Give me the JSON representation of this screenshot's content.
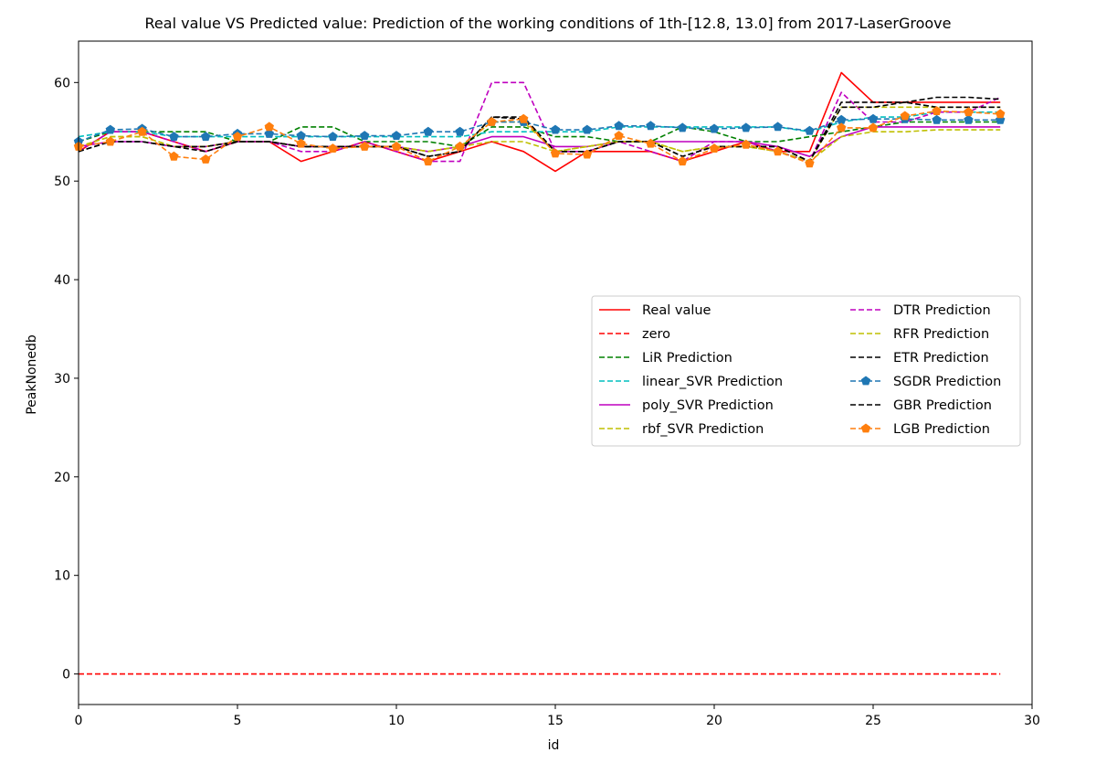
{
  "chart_data": {
    "type": "line",
    "title": "Real value VS Predicted value: Prediction of the working conditions of 1th-[12.8, 13.0] from 2017-LaserGroove",
    "xlabel": "id",
    "ylabel": "PeakNonedb",
    "xlim": [
      0,
      30
    ],
    "ylim": [
      -3.1,
      64.2
    ],
    "xticks": [
      0,
      5,
      10,
      15,
      20,
      25,
      30
    ],
    "yticks": [
      0,
      10,
      20,
      30,
      40,
      50,
      60
    ],
    "grid": false,
    "legend_position": "center-right",
    "x": [
      0,
      1,
      2,
      3,
      4,
      5,
      6,
      7,
      8,
      9,
      10,
      11,
      12,
      13,
      14,
      15,
      16,
      17,
      18,
      19,
      20,
      21,
      22,
      23,
      24,
      25,
      26,
      27,
      28,
      29
    ],
    "series": [
      {
        "name": "Real value",
        "color": "#ff0000",
        "style": "solid",
        "marker": "none",
        "values": [
          53,
          55,
          55,
          54,
          53,
          54,
          54,
          52,
          53,
          54,
          53,
          52,
          53,
          54,
          53,
          51,
          53,
          53,
          53,
          52,
          53,
          54,
          53,
          53,
          61,
          58,
          58,
          58,
          58,
          58
        ]
      },
      {
        "name": "zero",
        "color": "#ff0000",
        "style": "dashed",
        "marker": "none",
        "values": [
          0,
          0,
          0,
          0,
          0,
          0,
          0,
          0,
          0,
          0,
          0,
          0,
          0,
          0,
          0,
          0,
          0,
          0,
          0,
          0,
          0,
          0,
          0,
          0,
          0,
          0,
          0,
          0,
          0,
          0
        ]
      },
      {
        "name": "LiR Prediction",
        "color": "#008000",
        "style": "dashed",
        "marker": "none",
        "values": [
          54,
          55,
          55,
          55,
          55,
          54,
          54,
          55.5,
          55.5,
          54,
          54,
          54,
          53.5,
          55.5,
          55.5,
          54.5,
          54.5,
          54,
          54,
          55.5,
          55,
          54,
          54,
          54.5,
          55,
          55.5,
          56,
          56,
          56,
          56
        ]
      },
      {
        "name": "linear_SVR Prediction",
        "color": "#00bfbf",
        "style": "dashed",
        "marker": "none",
        "values": [
          54.5,
          55,
          55,
          54.5,
          54.5,
          54.5,
          54.5,
          54.5,
          54.5,
          54.5,
          54.5,
          54.5,
          54.5,
          55,
          55,
          55,
          55,
          55.5,
          55.5,
          55.5,
          55.5,
          55.5,
          55.5,
          55,
          56,
          56.5,
          56.5,
          57,
          57,
          57
        ]
      },
      {
        "name": "poly_SVR Prediction",
        "color": "#bf00bf",
        "style": "solid",
        "marker": "none",
        "values": [
          53.5,
          54,
          54,
          53.5,
          53.5,
          54,
          54,
          53.5,
          53.5,
          53.5,
          53.5,
          53,
          53.5,
          54.5,
          54.5,
          53.5,
          53.5,
          54,
          54,
          54,
          54,
          54,
          53.5,
          52.5,
          54.5,
          55.5,
          55.5,
          55.5,
          55.5,
          55.5
        ]
      },
      {
        "name": "rbf_SVR Prediction",
        "color": "#bfbf00",
        "style": "dashed",
        "marker": "none",
        "values": [
          53.5,
          54.5,
          54.5,
          53.5,
          53.5,
          54,
          54,
          53.5,
          53.5,
          53.5,
          53.5,
          53,
          53.5,
          54,
          54,
          53,
          53.5,
          54,
          54,
          53,
          53.5,
          53.5,
          53,
          52,
          54.5,
          55,
          55,
          55.2,
          55.2,
          55.2
        ]
      },
      {
        "name": "DTR Prediction",
        "color": "#bf00bf",
        "style": "dashed",
        "marker": "none",
        "values": [
          53,
          55,
          55,
          54,
          53,
          54,
          54,
          53,
          53,
          54,
          53,
          52,
          52,
          60,
          60,
          53,
          53,
          54,
          53,
          52,
          54,
          54,
          53,
          52,
          59,
          56,
          56,
          57,
          57,
          58.5
        ]
      },
      {
        "name": "RFR Prediction",
        "color": "#bfbf00",
        "style": "dashed",
        "marker": "none",
        "values": [
          53.5,
          54.5,
          54.5,
          53.5,
          53.5,
          54,
          54,
          53.5,
          53.5,
          53.5,
          53.5,
          53,
          53.5,
          56,
          56,
          53,
          53.5,
          54,
          54,
          53,
          53.5,
          53.5,
          53,
          52,
          57.5,
          57.5,
          57.5,
          57.5,
          57.5,
          57.5
        ]
      },
      {
        "name": "ETR Prediction",
        "color": "#000000",
        "style": "dashed",
        "marker": "none",
        "values": [
          53,
          54,
          54,
          53.5,
          53.5,
          54,
          54,
          53.5,
          53.5,
          53.5,
          53.5,
          52.5,
          53,
          56.5,
          56.5,
          53,
          53,
          54,
          54,
          52.5,
          53.5,
          53.5,
          53.5,
          52,
          57.5,
          57.5,
          58,
          57.5,
          57.5,
          57.5
        ]
      },
      {
        "name": "SGDR Prediction",
        "color": "#1f77b4",
        "style": "dashed",
        "marker": "pentagon",
        "values": [
          54,
          55.2,
          55.3,
          54.5,
          54.5,
          54.8,
          54.8,
          54.6,
          54.5,
          54.6,
          54.6,
          55,
          55,
          56,
          56,
          55.2,
          55.2,
          55.6,
          55.6,
          55.4,
          55.3,
          55.4,
          55.5,
          55.1,
          56.2,
          56.3,
          56.3,
          56.2,
          56.2,
          56.2
        ]
      },
      {
        "name": "GBR Prediction",
        "color": "#000000",
        "style": "dashed",
        "marker": "none",
        "values": [
          53,
          54,
          54,
          53.5,
          53,
          54,
          54,
          53.5,
          53.5,
          53.5,
          53.5,
          52.5,
          53,
          56.5,
          56.3,
          53,
          53,
          54,
          54,
          52.5,
          53.5,
          53.5,
          53.5,
          52,
          58,
          58,
          58,
          58.5,
          58.5,
          58.3
        ]
      },
      {
        "name": "LGB Prediction",
        "color": "#ff7f0e",
        "style": "dashed",
        "marker": "pentagon",
        "values": [
          53.5,
          54,
          55,
          52.5,
          52.2,
          54.5,
          55.5,
          53.8,
          53.3,
          53.5,
          53.5,
          52,
          53.5,
          56,
          56.3,
          52.8,
          52.7,
          54.6,
          53.8,
          52,
          53.3,
          53.7,
          53,
          51.8,
          55.4,
          55.4,
          56.6,
          57.1,
          57,
          56.8
        ]
      }
    ]
  }
}
